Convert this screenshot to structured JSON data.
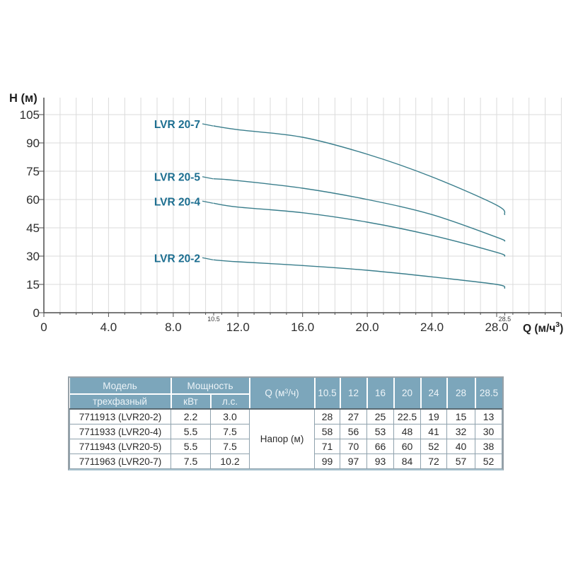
{
  "page": {
    "background": "#FFFFFF"
  },
  "chart_data": {
    "type": "line",
    "title": "",
    "y_axis": {
      "label": "H (м)",
      "ticks": [
        0,
        15,
        30,
        45,
        60,
        75,
        90,
        105
      ],
      "tick_labels": [
        "0",
        "15",
        "30",
        "45",
        "60",
        "75",
        "90",
        "105"
      ],
      "range": [
        0,
        114
      ],
      "grid_step": 15
    },
    "x_axis": {
      "label": "Q (м/ч³)",
      "label_parts": {
        "main": "Q (м/ч",
        "sup": "3",
        "close": ")"
      },
      "ticks": [
        0,
        4,
        8,
        12,
        16,
        20,
        24,
        28
      ],
      "tick_labels": [
        "0",
        "4.0",
        "8.0",
        "12.0",
        "16.0",
        "20.0",
        "24.0",
        "28.0"
      ],
      "minor_ticks": [
        {
          "value": 10.5,
          "label": "10.5"
        },
        {
          "value": 28.5,
          "label": "28.5"
        }
      ],
      "range": [
        0,
        32
      ],
      "grid_step": 1
    },
    "x": [
      10.5,
      12,
      16,
      20,
      24,
      28,
      28.5
    ],
    "series": [
      {
        "name": "LVR 20-7",
        "values": [
          99,
          97,
          93,
          84,
          72,
          57,
          52
        ]
      },
      {
        "name": "LVR 20-5",
        "values": [
          71,
          70,
          66,
          60,
          52,
          40,
          38
        ]
      },
      {
        "name": "LVR 20-4",
        "values": [
          58,
          56,
          53,
          48,
          41,
          32,
          30
        ]
      },
      {
        "name": "LVR 20-2",
        "values": [
          28,
          27,
          25,
          22.5,
          19,
          15,
          13
        ]
      }
    ],
    "grid": true,
    "legend_position": "labels-left-of-curve-start",
    "colors": {
      "curve": "#3A7E8C",
      "series_label": "#1C6E90",
      "grid": "#DBDBDB",
      "axis": "#4D4D4D",
      "tick_text": "#2E2E2E",
      "title_text": "#1F1F1F"
    }
  },
  "table": {
    "header": {
      "model": "Модель",
      "model_sub": "трехфазный",
      "power": "Мощность",
      "power_kw": "кВт",
      "power_hp": "л.с.",
      "q": {
        "full": "Q (м³/ч)",
        "main": "Q (м",
        "sup": "3",
        "close": "/ч)"
      },
      "flow_cols": [
        "10.5",
        "12",
        "16",
        "20",
        "24",
        "28",
        "28.5"
      ],
      "head_row_label": "Напор (м)"
    },
    "rows": [
      {
        "model": "7711913 (LVR20-2)",
        "kw": "2.2",
        "hp": "3.0",
        "heads": [
          "28",
          "27",
          "25",
          "22.5",
          "19",
          "15",
          "13"
        ]
      },
      {
        "model": "7711933 (LVR20-4)",
        "kw": "5.5",
        "hp": "7.5",
        "heads": [
          "58",
          "56",
          "53",
          "48",
          "41",
          "32",
          "30"
        ]
      },
      {
        "model": "7711943 (LVR20-5)",
        "kw": "5.5",
        "hp": "7.5",
        "heads": [
          "71",
          "70",
          "66",
          "60",
          "52",
          "40",
          "38"
        ]
      },
      {
        "model": "7711963 (LVR20-7)",
        "kw": "7.5",
        "hp": "10.2",
        "heads": [
          "99",
          "97",
          "93",
          "84",
          "72",
          "57",
          "52"
        ]
      }
    ],
    "colors": {
      "header_bg": "#7CA6BB",
      "header_text": "#EDF4F8",
      "body_text": "#2B2B2B"
    }
  }
}
